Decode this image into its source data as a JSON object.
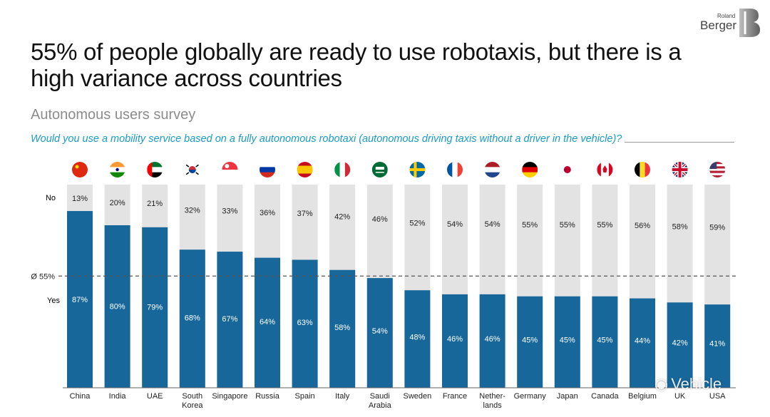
{
  "brand": {
    "small": "Roland",
    "big": "Berger"
  },
  "title": "55% of people globally are ready to use robotaxis, but there is a high variance across countries",
  "subtitle": "Autonomous users survey",
  "question": "Would you use a mobility service based on a fully autonomous robotaxi (autonomous driving taxis without a driver in the vehicle)?",
  "watermark": "Vehicle",
  "colors": {
    "yes": "#17679b",
    "no": "#e3e3e3",
    "accent": "#1a9ac6"
  },
  "chart_data": {
    "type": "bar",
    "stacked": true,
    "categories": [
      "China",
      "India",
      "UAE",
      "South Korea",
      "Singapore",
      "Russia",
      "Spain",
      "Italy",
      "Saudi Arabia",
      "Sweden",
      "France",
      "Netherlands",
      "Germany",
      "Japan",
      "Canada",
      "Belgium",
      "UK",
      "USA"
    ],
    "category_lines": [
      [
        "China"
      ],
      [
        "India"
      ],
      [
        "UAE"
      ],
      [
        "South",
        "Korea"
      ],
      [
        "Singapore"
      ],
      [
        "Russia"
      ],
      [
        "Spain"
      ],
      [
        "Italy"
      ],
      [
        "Saudi",
        "Arabia"
      ],
      [
        "Sweden"
      ],
      [
        "France"
      ],
      [
        "Nether-",
        "lands"
      ],
      [
        "Germany"
      ],
      [
        "Japan"
      ],
      [
        "Canada"
      ],
      [
        "Belgium"
      ],
      [
        "UK"
      ],
      [
        "USA"
      ]
    ],
    "flags": [
      "china",
      "india",
      "uae",
      "south-korea",
      "singapore",
      "russia",
      "spain",
      "italy",
      "saudi-arabia",
      "sweden",
      "france",
      "netherlands",
      "germany",
      "japan",
      "canada",
      "belgium",
      "uk",
      "usa"
    ],
    "series": [
      {
        "name": "Yes",
        "values": [
          87,
          80,
          79,
          68,
          67,
          64,
          63,
          58,
          54,
          48,
          46,
          46,
          45,
          45,
          45,
          44,
          42,
          41
        ],
        "labels": [
          "87%",
          "80%",
          "79%",
          "68%",
          "67%",
          "64%",
          "63%",
          "58%",
          "54%",
          "48%",
          "46%",
          "46%",
          "45%",
          "45%",
          "45%",
          "44%",
          "42%",
          "41%"
        ]
      },
      {
        "name": "No",
        "values": [
          13,
          20,
          21,
          32,
          33,
          36,
          37,
          42,
          46,
          52,
          54,
          54,
          55,
          55,
          55,
          56,
          58,
          59
        ],
        "labels": [
          "13%",
          "20%",
          "21%",
          "32%",
          "33%",
          "36%",
          "37%",
          "42%",
          "46%",
          "52%",
          "54%",
          "54%",
          "55%",
          "55%",
          "55%",
          "56%",
          "58%",
          "59%"
        ]
      }
    ],
    "average": {
      "value": 55,
      "label": "Ø 55%"
    },
    "ylim": [
      0,
      100
    ]
  }
}
